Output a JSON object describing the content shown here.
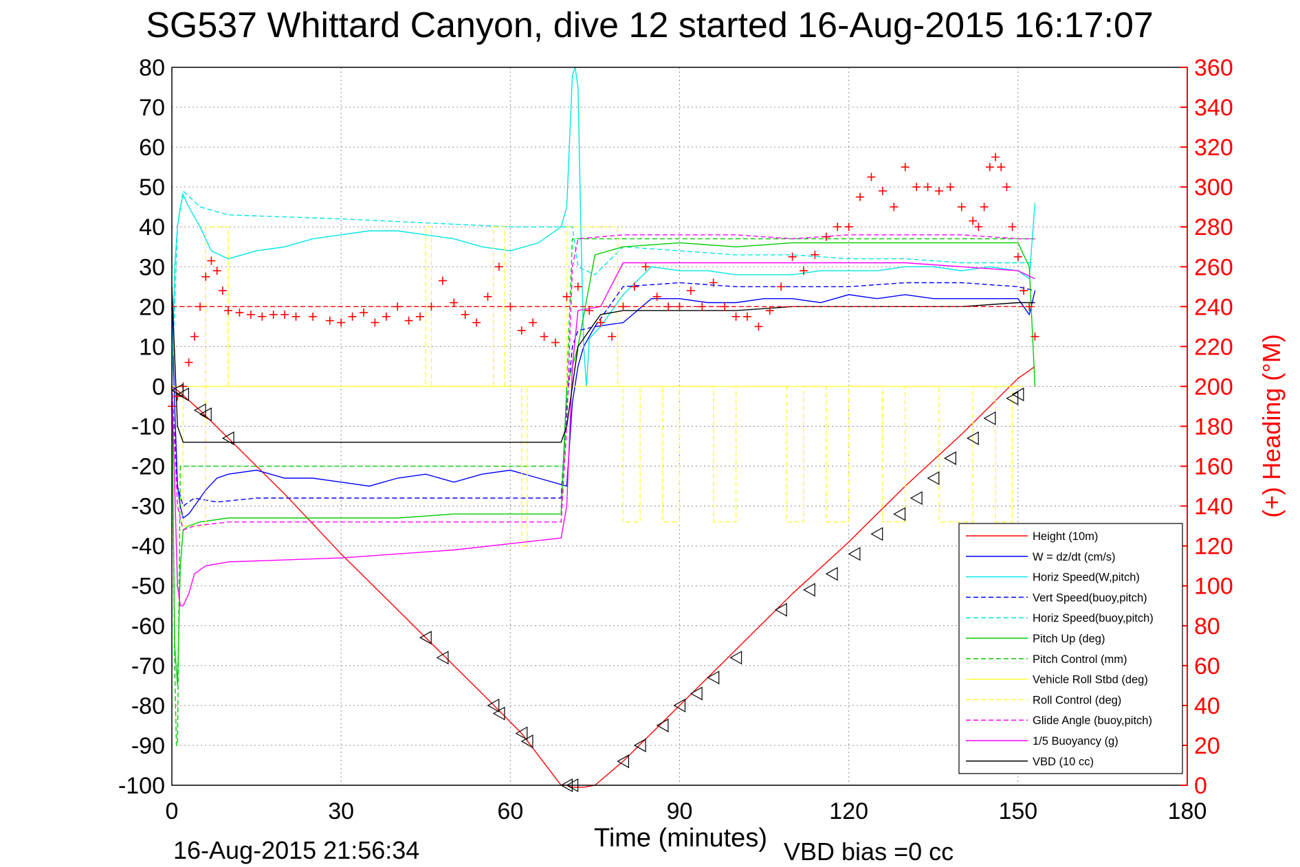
{
  "colors": {
    "red": "#ff0000",
    "blue": "#0000ff",
    "cyan": "#00e5e5",
    "green": "#00cc00",
    "yellow": "#ffff33",
    "magenta": "#ff00ff",
    "black": "#000000",
    "grid": "#8c8c8c"
  },
  "chart_data": {
    "type": "line",
    "title": "SG537 Whittard Canyon, dive 12 started 16-Aug-2015 16:17:07",
    "xlabel": "Time (minutes)",
    "ylabel": "",
    "y2label": "(+) Heading (°M)",
    "xlim": [
      0,
      180
    ],
    "ylim": [
      -100,
      80
    ],
    "y2lim": [
      0,
      360
    ],
    "grid": true,
    "legend_position": "bottom-right",
    "x_ticks": [
      "0",
      "30",
      "60",
      "90",
      "120",
      "150",
      "180"
    ],
    "y_ticks": [
      "80",
      "70",
      "60",
      "50",
      "40",
      "30",
      "20",
      "10",
      "0",
      "-10",
      "-20",
      "-30",
      "-40",
      "-50",
      "-60",
      "-70",
      "-80",
      "-90",
      "-100"
    ],
    "y2_ticks": [
      "360",
      "340",
      "320",
      "300",
      "280",
      "260",
      "240",
      "220",
      "200",
      "180",
      "160",
      "140",
      "120",
      "100",
      "80",
      "60",
      "40",
      "20",
      "0"
    ],
    "footer_left": "16-Aug-2015 21:56:34",
    "footer_right": "VBD bias =0 cc",
    "series": [
      {
        "name": "Height (10m)",
        "color": "red",
        "dash": false,
        "x": [
          0,
          1,
          5,
          10,
          20,
          30,
          45,
          55,
          62,
          69,
          70,
          71,
          73,
          75,
          80,
          90,
          100,
          110,
          120,
          130,
          140,
          150,
          153
        ],
        "y": [
          0,
          -1,
          -6,
          -13,
          -27,
          -42,
          -63,
          -77,
          -87,
          -100,
          -100,
          -100.5,
          -100.5,
          -100,
          -94,
          -80,
          -66,
          -52,
          -39,
          -25,
          -12,
          2,
          5
        ]
      },
      {
        "name": "W = dz/dt (cm/s)",
        "color": "blue",
        "dash": false,
        "x": [
          0,
          0.5,
          1,
          1.5,
          2,
          3,
          4,
          5,
          6,
          8,
          10,
          15,
          20,
          25,
          30,
          35,
          40,
          45,
          50,
          55,
          60,
          65,
          70,
          71,
          72,
          73,
          75,
          80,
          85,
          90,
          95,
          100,
          105,
          110,
          115,
          120,
          125,
          130,
          135,
          140,
          145,
          150,
          152,
          153
        ],
        "y": [
          20,
          -5,
          -25,
          -30,
          -33,
          -32,
          -30,
          -28,
          -26,
          -23,
          -22,
          -21,
          -23,
          -23,
          -24,
          -25,
          -23,
          -22,
          -24,
          -22,
          -21,
          -23,
          -25,
          -4,
          5,
          10,
          15,
          16,
          22,
          22,
          21,
          21,
          22,
          22,
          21,
          23,
          22,
          23,
          22,
          22,
          22,
          22,
          18,
          24
        ]
      },
      {
        "name": "Horiz Speed(W,pitch)",
        "color": "cyan",
        "dash": false,
        "x": [
          0,
          0.5,
          1,
          1.5,
          2,
          3,
          5,
          7,
          10,
          15,
          20,
          25,
          30,
          35,
          40,
          45,
          50,
          55,
          60,
          65,
          69,
          70,
          71,
          71.5,
          72,
          72.5,
          73,
          73.5,
          74,
          76,
          80,
          85,
          90,
          95,
          100,
          105,
          110,
          115,
          120,
          125,
          130,
          135,
          140,
          145,
          150,
          152,
          153
        ],
        "y": [
          0,
          30,
          40,
          45,
          48,
          45,
          40,
          34,
          32,
          34,
          35,
          37,
          38,
          39,
          39,
          38,
          37,
          35,
          34,
          36,
          40,
          45,
          78,
          80,
          75,
          40,
          10,
          0,
          12,
          15,
          23,
          30,
          29,
          29,
          28,
          28,
          28,
          29,
          29,
          29,
          30,
          30,
          29,
          30,
          29,
          27,
          46
        ]
      },
      {
        "name": "Vert Speed(buoy,pitch)",
        "color": "blue",
        "dash": true,
        "x": [
          0,
          1,
          2,
          4,
          8,
          15,
          30,
          45,
          60,
          69,
          70,
          71,
          72,
          75,
          80,
          90,
          100,
          110,
          120,
          130,
          140,
          150,
          153
        ],
        "y": [
          0,
          -25,
          -30,
          -28,
          -29,
          -28,
          -28,
          -28,
          -28,
          -28,
          -5,
          10,
          14,
          15,
          25,
          26,
          25,
          25,
          25,
          26,
          26,
          25,
          24
        ]
      },
      {
        "name": "Horiz Speed(buoy,pitch)",
        "color": "cyan",
        "dash": true,
        "x": [
          0,
          1,
          2,
          5,
          10,
          30,
          45,
          60,
          69,
          70,
          71,
          72,
          75,
          80,
          90,
          100,
          110,
          120,
          130,
          140,
          150,
          153
        ],
        "y": [
          0,
          40,
          49,
          45,
          43,
          42,
          41,
          40,
          40,
          40,
          40,
          30,
          28,
          35,
          34,
          33,
          33,
          32,
          32,
          31,
          31,
          31
        ]
      },
      {
        "name": "Pitch Up (deg)",
        "color": "green",
        "dash": false,
        "x": [
          0,
          0.5,
          1,
          1.5,
          2,
          3,
          5,
          10,
          20,
          30,
          40,
          50,
          60,
          69,
          70,
          71,
          72,
          75,
          80,
          90,
          100,
          110,
          120,
          130,
          140,
          150,
          152,
          153
        ],
        "y": [
          0,
          -65,
          -75,
          -45,
          -36,
          -35,
          -34,
          -33,
          -33,
          -33,
          -33,
          -32,
          -32,
          -32,
          0,
          5,
          10,
          33,
          35,
          36,
          35,
          36,
          36,
          36,
          36,
          36,
          30,
          0
        ]
      },
      {
        "name": "Pitch Control (mm)",
        "color": "green",
        "dash": true,
        "x": [
          0,
          0.5,
          0.8,
          1,
          1.5,
          2,
          69.5,
          70,
          71,
          153
        ],
        "y": [
          0,
          -70,
          -90,
          -90,
          -20,
          -20,
          -20,
          0,
          37,
          37
        ]
      },
      {
        "name": "Vehicle Roll Stbd (deg)",
        "color": "yellow",
        "dash": false,
        "x": [
          0,
          70,
          75,
          150
        ],
        "y": [
          0,
          0,
          0,
          0
        ]
      },
      {
        "name": "Roll Control (deg)",
        "color": "yellow",
        "dash": true,
        "x": [
          0,
          2,
          2,
          6,
          6,
          10,
          10,
          45,
          45,
          46,
          46,
          57,
          57,
          59,
          59,
          62,
          62,
          63,
          63,
          70,
          70,
          79,
          79,
          80,
          80,
          83,
          83,
          87,
          87,
          90,
          90,
          96,
          96,
          100,
          100,
          109,
          109,
          112,
          112,
          116,
          116,
          120,
          120,
          126,
          126,
          130,
          130,
          136,
          136,
          142,
          142,
          146,
          146,
          149,
          149,
          151
        ],
        "y": [
          0,
          0,
          -35,
          -35,
          40,
          40,
          0,
          0,
          40,
          40,
          0,
          0,
          40,
          40,
          0,
          0,
          -40,
          -40,
          0,
          0,
          40,
          40,
          0,
          0,
          -34,
          -34,
          0,
          0,
          -34,
          -34,
          0,
          0,
          -34,
          -34,
          0,
          0,
          -34,
          -34,
          0,
          0,
          -34,
          -34,
          0,
          0,
          -34,
          -34,
          0,
          0,
          -34,
          -34,
          0,
          0,
          -34,
          -34,
          0,
          0
        ]
      },
      {
        "name": "Glide Angle (buoy,pitch)",
        "color": "magenta",
        "dash": true,
        "x": [
          0,
          1,
          2,
          4,
          10,
          30,
          50,
          69,
          70,
          71,
          72,
          80,
          90,
          100,
          110,
          120,
          130,
          140,
          150,
          153
        ],
        "y": [
          0,
          -30,
          -36,
          -35,
          -34,
          -34,
          -34,
          -34,
          -10,
          30,
          37,
          38,
          38,
          38,
          37,
          38,
          38,
          38,
          37,
          37
        ]
      },
      {
        "name": "1/5 Buoyancy (g)",
        "color": "magenta",
        "dash": false,
        "x": [
          0,
          1,
          1.5,
          2,
          3,
          4,
          6,
          10,
          30,
          50,
          69,
          70,
          71,
          72,
          76,
          80,
          90,
          100,
          110,
          120,
          130,
          140,
          150,
          153
        ],
        "y": [
          0,
          -50,
          -55,
          -55,
          -52,
          -47,
          -45,
          -44,
          -43,
          -41,
          -38,
          -30,
          5,
          19,
          20,
          31,
          31,
          31,
          31,
          31,
          31,
          30,
          29,
          27
        ]
      },
      {
        "name": "VBD (10 cc)",
        "color": "black",
        "dash": false,
        "x": [
          0,
          1,
          2,
          10,
          30,
          60,
          69,
          70,
          71,
          72,
          76,
          80,
          90,
          100,
          110,
          120,
          130,
          140,
          150,
          153
        ],
        "y": [
          25,
          -10,
          -14,
          -14,
          -14,
          -14,
          -14,
          -10,
          0,
          10,
          18,
          19,
          19,
          19,
          20,
          20,
          20,
          20,
          21,
          21
        ]
      },
      {
        "name": "",
        "color": "red",
        "dash": true,
        "axis": "right",
        "x": [
          0,
          153
        ],
        "y": [
          240,
          240
        ]
      },
      {
        "name": "",
        "color": "red",
        "marker": "+",
        "axis": "right",
        "x": [
          0,
          1,
          2,
          3,
          4,
          5,
          6,
          7,
          8,
          9,
          10,
          12,
          14,
          16,
          18,
          20,
          22,
          25,
          28,
          30,
          32,
          34,
          36,
          38,
          40,
          42,
          44,
          46,
          48,
          50,
          52,
          54,
          56,
          58,
          60,
          62,
          64,
          66,
          68,
          70,
          72,
          74,
          76,
          78,
          80,
          82,
          84,
          86,
          88,
          90,
          92,
          94,
          96,
          98,
          100,
          102,
          104,
          106,
          108,
          110,
          112,
          114,
          116,
          118,
          120,
          122,
          124,
          126,
          128,
          130,
          132,
          134,
          136,
          138,
          140,
          142,
          143,
          144,
          145,
          146,
          147,
          148,
          149,
          150,
          151,
          152,
          153
        ],
        "y": [
          190,
          195,
          200,
          212,
          225,
          240,
          255,
          263,
          258,
          248,
          238,
          237,
          236,
          235,
          236,
          236,
          235,
          235,
          233,
          232,
          235,
          237,
          232,
          235,
          240,
          233,
          235,
          240,
          253,
          242,
          236,
          232,
          245,
          260,
          240,
          228,
          232,
          225,
          222,
          245,
          250,
          238,
          232,
          225,
          240,
          250,
          260,
          245,
          240,
          240,
          248,
          240,
          252,
          240,
          235,
          235,
          230,
          238,
          250,
          265,
          258,
          266,
          275,
          280,
          280,
          295,
          305,
          298,
          290,
          310,
          300,
          300,
          298,
          300,
          290,
          283,
          280,
          290,
          310,
          315,
          310,
          300,
          280,
          265,
          248,
          240,
          225
        ]
      },
      {
        "name": "",
        "color": "black",
        "marker": "triangle",
        "axis": "left",
        "x": [
          1,
          2,
          5,
          6,
          10,
          45,
          48,
          57,
          58,
          62,
          63,
          70,
          71,
          80,
          83,
          87,
          90,
          93,
          96,
          100,
          108,
          113,
          117,
          121,
          125,
          129,
          132,
          135,
          138,
          142,
          145,
          149,
          150
        ],
        "y": [
          -1,
          -2,
          -6,
          -7,
          -13,
          -63,
          -68,
          -80,
          -82,
          -87,
          -89,
          -100,
          -100,
          -94,
          -90,
          -85,
          -80,
          -77,
          -73,
          -68,
          -56,
          -51,
          -47,
          -42,
          -37,
          -32,
          -28,
          -23,
          -18,
          -13,
          -8,
          -3,
          -2
        ]
      }
    ]
  },
  "legend": [
    {
      "label": "Height (10m)",
      "color": "red",
      "dash": false
    },
    {
      "label": "W = dz/dt (cm/s)",
      "color": "blue",
      "dash": false
    },
    {
      "label": "Horiz Speed(W,pitch)",
      "color": "cyan",
      "dash": false
    },
    {
      "label": "Vert Speed(buoy,pitch)",
      "color": "blue",
      "dash": true
    },
    {
      "label": "Horiz Speed(buoy,pitch)",
      "color": "cyan",
      "dash": true
    },
    {
      "label": "Pitch Up (deg)",
      "color": "green",
      "dash": false
    },
    {
      "label": "Pitch Control (mm)",
      "color": "green",
      "dash": true
    },
    {
      "label": "Vehicle Roll Stbd (deg)",
      "color": "yellow",
      "dash": false
    },
    {
      "label": "Roll Control (deg)",
      "color": "yellow",
      "dash": true
    },
    {
      "label": "Glide Angle (buoy,pitch)",
      "color": "magenta",
      "dash": true
    },
    {
      "label": "1/5 Buoyancy (g)",
      "color": "magenta",
      "dash": false
    },
    {
      "label": "VBD (10 cc)",
      "color": "black",
      "dash": false
    }
  ]
}
